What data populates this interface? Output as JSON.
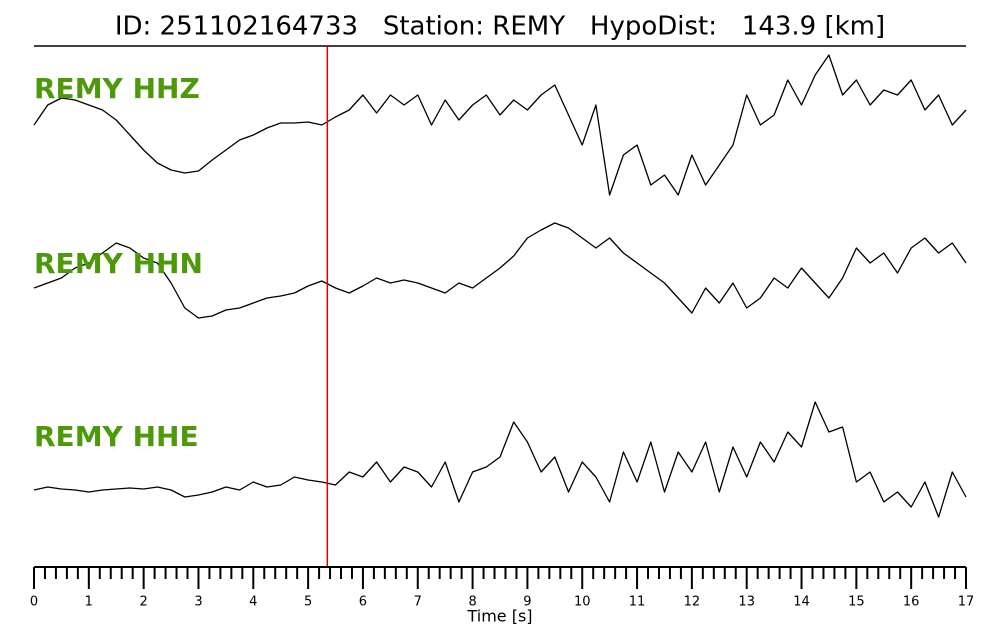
{
  "chart_data": {
    "type": "seismogram",
    "title": "ID: 251102164733   Station: REMY   HypoDist:   143.9 [km]",
    "xlabel": "Time [s]",
    "xlim": [
      0,
      17
    ],
    "xticks": [
      0,
      1,
      2,
      3,
      4,
      5,
      6,
      7,
      8,
      9,
      10,
      11,
      12,
      13,
      14,
      15,
      16,
      17
    ],
    "xticks_minor": [
      0.2,
      0.4,
      0.6,
      0.8,
      1.2,
      1.4,
      1.6,
      1.8,
      2.2,
      2.4,
      2.6,
      2.8,
      3.2,
      3.4,
      3.6,
      3.8,
      4.2,
      4.4,
      4.6,
      4.8,
      5.2,
      5.4,
      5.6,
      5.8,
      6.2,
      6.4,
      6.6,
      6.8,
      7.2,
      7.4,
      7.6,
      7.8,
      8.2,
      8.4,
      8.6,
      8.8,
      9.2,
      9.4,
      9.6,
      9.8,
      10.2,
      10.4,
      10.6,
      10.8,
      11.2,
      11.4,
      11.6,
      11.8,
      12.2,
      12.4,
      12.6,
      12.8,
      13.2,
      13.4,
      13.6,
      13.8,
      14.2,
      14.4,
      14.6,
      14.8,
      15.2,
      15.4,
      15.6,
      15.8,
      16.2,
      16.4,
      16.6,
      16.8
    ],
    "ylim": [
      -8,
      8
    ],
    "pick_time": 5.35,
    "pick_color": "#e00000",
    "label_color": "#4c9a0a",
    "x": [
      0,
      0.25,
      0.5,
      0.75,
      1,
      1.25,
      1.5,
      1.75,
      2,
      2.25,
      2.5,
      2.75,
      3,
      3.25,
      3.5,
      3.75,
      4,
      4.25,
      4.5,
      4.75,
      5,
      5.25,
      5.5,
      5.75,
      6,
      6.25,
      6.5,
      6.75,
      7,
      7.25,
      7.5,
      7.75,
      8,
      8.25,
      8.5,
      8.75,
      9,
      9.25,
      9.5,
      9.75,
      10,
      10.25,
      10.5,
      10.75,
      11,
      11.25,
      11.5,
      11.75,
      12,
      12.25,
      12.5,
      12.75,
      13,
      13.25,
      13.5,
      13.75,
      14,
      14.25,
      14.5,
      14.75,
      15,
      15.25,
      15.5,
      15.75,
      16,
      16.25,
      16.5,
      16.75,
      17
    ],
    "series": [
      {
        "name": "REMY HHZ",
        "color": "#000000",
        "values": [
          0.5,
          2.5,
          3.2,
          3.0,
          2.5,
          2.0,
          1.0,
          -0.5,
          -2.0,
          -3.3,
          -4.0,
          -4.3,
          -4.1,
          -3.0,
          -2.0,
          -1.0,
          -0.5,
          0.2,
          0.7,
          0.7,
          0.8,
          0.5,
          1.3,
          2.0,
          3.5,
          1.7,
          3.5,
          2.5,
          3.5,
          0.5,
          3.0,
          1.0,
          2.5,
          3.5,
          1.5,
          3.0,
          2.0,
          3.5,
          4.5,
          1.5,
          -1.5,
          2.5,
          -6.5,
          -2.5,
          -1.5,
          -5.5,
          -4.5,
          -6.5,
          -2.5,
          -5.5,
          -3.5,
          -1.5,
          3.5,
          0.5,
          1.5,
          5.0,
          2.5,
          5.5,
          7.5,
          3.5,
          5.0,
          2.5,
          4.0,
          3.5,
          5.0,
          2.0,
          3.5,
          0.5,
          2.0
        ]
      },
      {
        "name": "REMY HHN",
        "color": "#000000",
        "values": [
          -1.0,
          -0.5,
          0,
          1.0,
          1.5,
          2.5,
          3.5,
          3.0,
          2.0,
          1.5,
          -0.5,
          -3.0,
          -4.0,
          -3.8,
          -3.2,
          -3.0,
          -2.5,
          -2.0,
          -1.8,
          -1.5,
          -0.8,
          -0.3,
          -1.0,
          -1.5,
          -0.8,
          0,
          -0.5,
          -0.2,
          -0.5,
          -1.0,
          -1.5,
          -0.5,
          -1.0,
          0,
          1.0,
          2.2,
          4.0,
          4.8,
          5.5,
          5.0,
          4.0,
          3.0,
          4.0,
          2.5,
          1.5,
          0.5,
          -0.5,
          -2.0,
          -3.5,
          -1.0,
          -2.5,
          -0.5,
          -3.0,
          -2.0,
          0,
          -1.0,
          1.0,
          -0.5,
          -2.0,
          0,
          3.0,
          1.5,
          2.5,
          0.5,
          3.0,
          4.0,
          2.5,
          3.5,
          1.5
        ]
      },
      {
        "name": "REMY HHE",
        "color": "#000000",
        "values": [
          -0.8,
          -0.5,
          -0.7,
          -0.8,
          -1.0,
          -0.8,
          -0.7,
          -0.6,
          -0.7,
          -0.5,
          -0.8,
          -1.5,
          -1.3,
          -1.0,
          -0.5,
          -0.8,
          0,
          -0.5,
          -0.3,
          0.5,
          0.2,
          0,
          -0.3,
          1.0,
          0.5,
          2.0,
          0,
          1.5,
          1.0,
          -0.5,
          2.0,
          -2.0,
          1.0,
          1.5,
          2.5,
          6.0,
          4.0,
          1.0,
          2.5,
          -1.0,
          2.0,
          0.5,
          -2.0,
          3.0,
          0,
          4.0,
          -1.0,
          3.0,
          1.0,
          4.0,
          -1.0,
          3.5,
          0.5,
          4.0,
          2.0,
          5.0,
          3.5,
          8.0,
          5.0,
          5.5,
          0,
          1.0,
          -2.0,
          -1.0,
          -2.5,
          0,
          -3.5,
          1.0,
          -1.5
        ]
      }
    ]
  }
}
